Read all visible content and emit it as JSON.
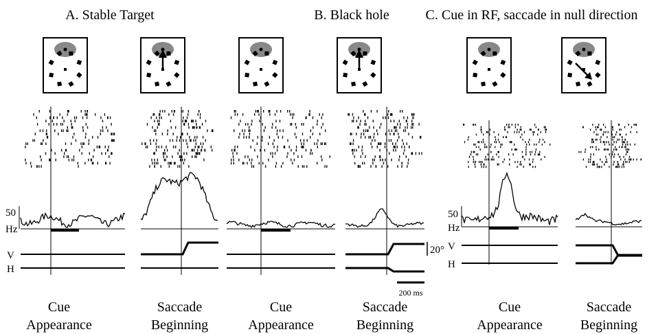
{
  "titles": {
    "a": "A. Stable Target",
    "b": "B. Black hole",
    "c": "C. Cue in RF, saccade in null direction"
  },
  "panels": [
    {
      "caption": [
        "Cue",
        "Appearance"
      ]
    },
    {
      "caption": [
        "Saccade",
        "Beginning"
      ]
    },
    {
      "caption": [
        "Cue",
        "Appearance"
      ]
    },
    {
      "caption": [
        "Saccade",
        "Beginning"
      ]
    },
    {
      "caption": [
        "Cue",
        "Appearance"
      ]
    },
    {
      "caption": [
        "Saccade",
        "Beginning"
      ]
    }
  ],
  "rate_scales": [
    {
      "value": "50",
      "unit": "Hz"
    },
    {
      "value": "50",
      "unit": "Hz"
    }
  ],
  "eye_labels": [
    {
      "v": "V",
      "h": "H"
    },
    {
      "v": "V",
      "h": "H"
    }
  ],
  "scale_bars": {
    "angle": "20°",
    "time": "200 ms"
  }
}
